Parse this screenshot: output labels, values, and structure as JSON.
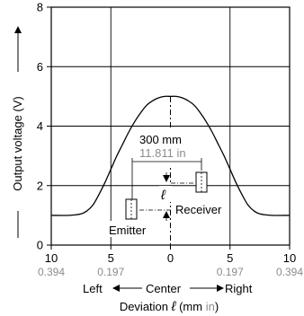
{
  "chart_data": {
    "type": "line",
    "x_ticks": [
      "10",
      "5",
      "0",
      "5",
      "10"
    ],
    "x_ticks_in": [
      "0.394",
      "0.197",
      "0",
      "0.197",
      "0.394"
    ],
    "y_ticks": [
      "0",
      "2",
      "4",
      "6",
      "8"
    ],
    "xlim": [
      -10,
      10
    ],
    "ylim": [
      0,
      8
    ],
    "grid": true,
    "series": [
      {
        "x": [
          -10,
          -8.5,
          -7.5,
          -7,
          -6.5,
          -6,
          -5.5,
          -5,
          -4.5,
          -4,
          -3.5,
          -3,
          -2.5,
          -2,
          -1.5,
          -1,
          -0.5,
          0,
          0.5,
          1,
          1.5,
          2,
          2.5,
          3,
          3.5,
          4,
          4.5,
          5,
          5.5,
          6,
          6.5,
          7,
          7.5,
          8.5,
          10
        ],
        "y": [
          1.0,
          1.0,
          1.05,
          1.15,
          1.35,
          1.7,
          2.1,
          2.55,
          3.0,
          3.4,
          3.8,
          4.15,
          4.45,
          4.7,
          4.85,
          4.95,
          5.0,
          5.0,
          5.0,
          4.95,
          4.85,
          4.7,
          4.45,
          4.15,
          3.8,
          3.4,
          3.0,
          2.55,
          2.1,
          1.7,
          1.35,
          1.15,
          1.05,
          1.0,
          1.0
        ]
      }
    ],
    "ylabel": "Output voltage (V)",
    "xlabel_part1": "Deviation ",
    "xlabel_symbol": "ℓ",
    "xlabel_part2": " (mm ",
    "xlabel_unit2": "in",
    "xlabel_part3": ")",
    "direction_left": "Left",
    "direction_center": "Center",
    "direction_right": "Right",
    "annotations": {
      "distance_mm": "300 mm",
      "distance_in": "11.811 in",
      "l_symbol": "ℓ",
      "emitter": "Emitter",
      "receiver": "Receiver"
    }
  }
}
